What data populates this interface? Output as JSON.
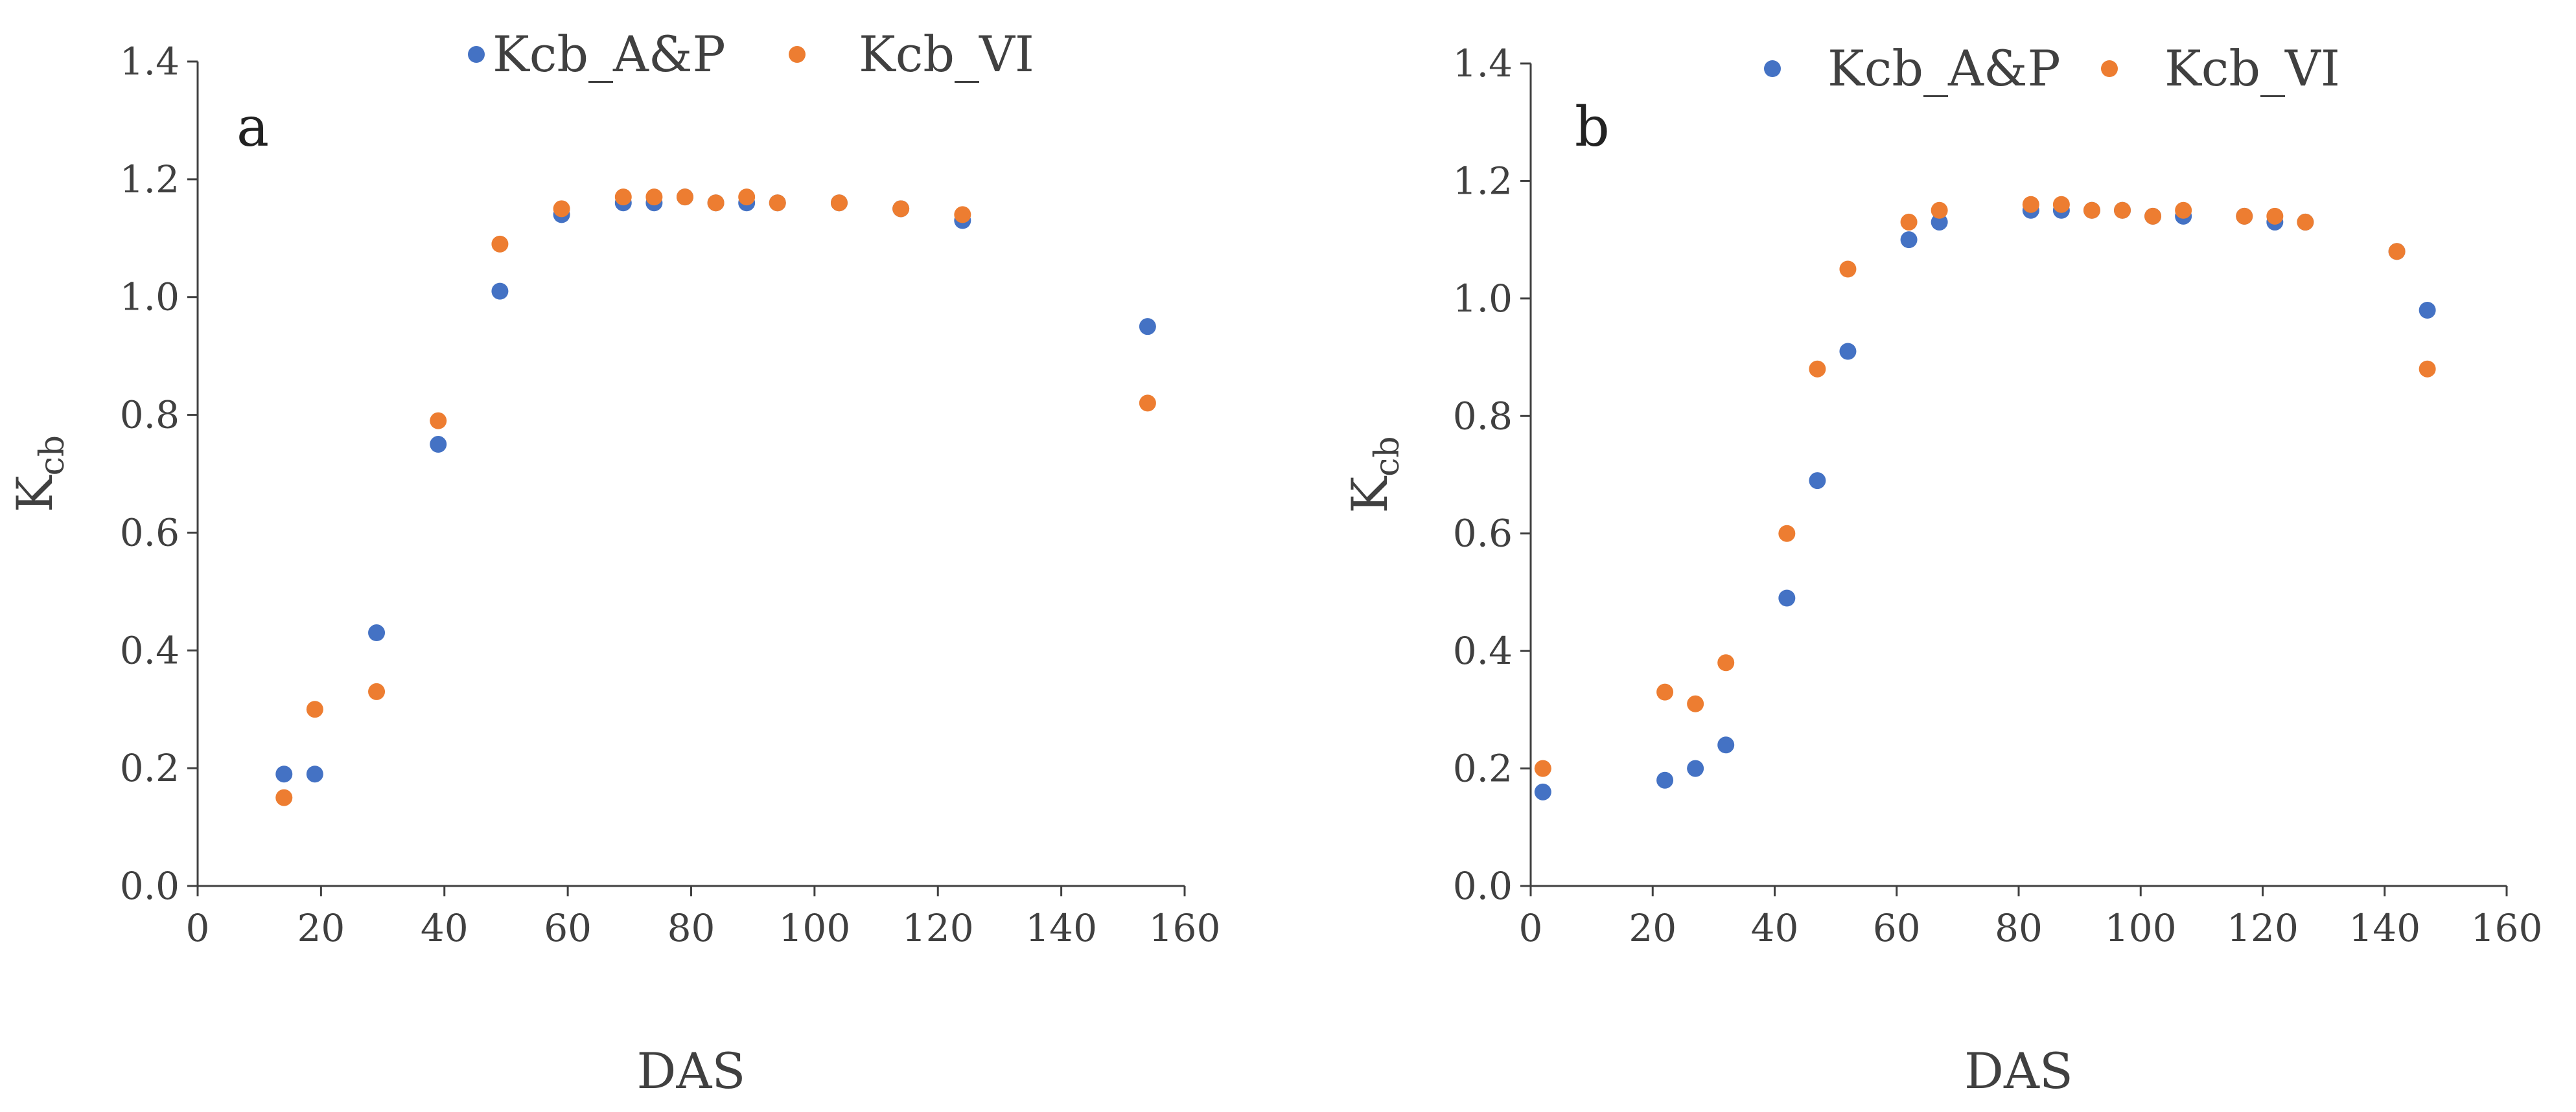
{
  "chart_data": [
    {
      "type": "scatter",
      "panel_label": "a",
      "xlabel": "DAS",
      "ylabel": {
        "main": "K",
        "sub": "cb"
      },
      "xlim": [
        0,
        160
      ],
      "ylim": [
        0,
        1.4
      ],
      "xticks": [
        "0",
        "20",
        "40",
        "60",
        "80",
        "100",
        "120",
        "140",
        "160"
      ],
      "yticks": [
        "0.0",
        "0.2",
        "0.4",
        "0.6",
        "0.8",
        "1.0",
        "1.2",
        "1.4"
      ],
      "legend_position": "top",
      "grid": false,
      "series": [
        {
          "name": "Kcb_A&P",
          "color": "#4472C4",
          "x": [
            14,
            19,
            29,
            39,
            49,
            59,
            69,
            74,
            79,
            84,
            89,
            94,
            104,
            114,
            124,
            154
          ],
          "y": [
            0.19,
            0.19,
            0.43,
            0.75,
            1.01,
            1.14,
            1.16,
            1.16,
            1.17,
            1.16,
            1.16,
            1.16,
            1.16,
            1.15,
            1.13,
            0.95
          ]
        },
        {
          "name": "Kcb_VI",
          "color": "#ED7D31",
          "x": [
            14,
            19,
            29,
            39,
            49,
            59,
            69,
            74,
            79,
            84,
            89,
            94,
            104,
            114,
            124,
            154
          ],
          "y": [
            0.15,
            0.3,
            0.33,
            0.79,
            1.09,
            1.15,
            1.17,
            1.17,
            1.17,
            1.16,
            1.17,
            1.16,
            1.16,
            1.15,
            1.14,
            0.82
          ]
        }
      ]
    },
    {
      "type": "scatter",
      "panel_label": "b",
      "xlabel": "DAS",
      "ylabel": {
        "main": "K",
        "sub": "cb"
      },
      "xlim": [
        0,
        160
      ],
      "ylim": [
        0,
        1.4
      ],
      "xticks": [
        "0",
        "20",
        "40",
        "60",
        "80",
        "100",
        "120",
        "140",
        "160"
      ],
      "yticks": [
        "0.0",
        "0.2",
        "0.4",
        "0.6",
        "0.8",
        "1.0",
        "1.2",
        "1.4"
      ],
      "legend_position": "top",
      "grid": false,
      "series": [
        {
          "name": "Kcb_A&P",
          "color": "#4472C4",
          "x": [
            2,
            22,
            27,
            32,
            42,
            47,
            52,
            62,
            67,
            82,
            87,
            92,
            97,
            102,
            107,
            117,
            122,
            127,
            142,
            147
          ],
          "y": [
            0.16,
            0.18,
            0.2,
            0.24,
            0.49,
            0.69,
            0.91,
            1.1,
            1.13,
            1.15,
            1.15,
            1.15,
            1.15,
            1.14,
            1.14,
            1.14,
            1.13,
            1.13,
            1.08,
            0.98
          ]
        },
        {
          "name": "Kcb_VI",
          "color": "#ED7D31",
          "x": [
            2,
            22,
            27,
            32,
            42,
            47,
            52,
            62,
            67,
            82,
            87,
            92,
            97,
            102,
            107,
            117,
            122,
            127,
            142,
            147
          ],
          "y": [
            0.2,
            0.33,
            0.31,
            0.38,
            0.6,
            0.88,
            1.05,
            1.13,
            1.15,
            1.16,
            1.16,
            1.15,
            1.15,
            1.14,
            1.15,
            1.14,
            1.14,
            1.13,
            1.08,
            0.88
          ]
        }
      ]
    }
  ]
}
